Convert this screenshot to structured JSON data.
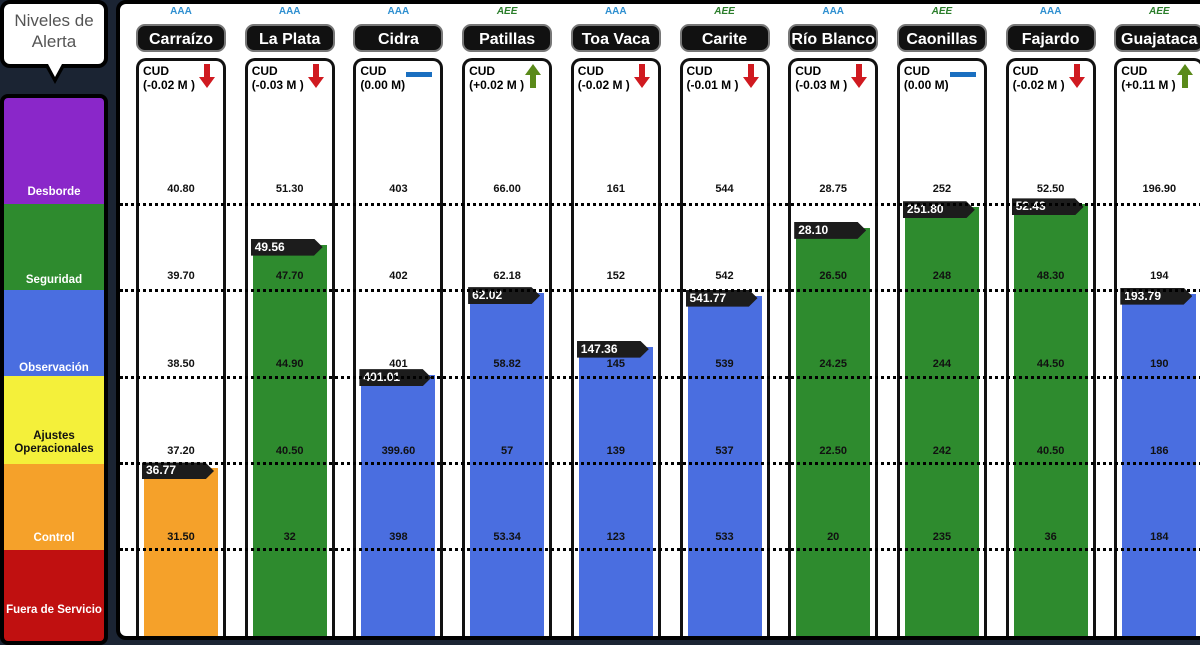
{
  "legend": {
    "title": "Niveles de Alerta",
    "bands": [
      {
        "label": "Desborde",
        "color": "#8a27c9"
      },
      {
        "label": "Seguridad",
        "color": "#2e8b2e"
      },
      {
        "label": "Observación",
        "color": "#4a6ee0"
      },
      {
        "label": "Ajustes Operacionales",
        "color": "#f4f03a"
      },
      {
        "label": "Control",
        "color": "#f5a12a"
      },
      {
        "label": "Fuera de Servicio",
        "color": "#c01010"
      }
    ]
  },
  "colors": {
    "green": "#2e8b2e",
    "blue": "#4a6ee0",
    "orange": "#f5a12a",
    "arrow_down": "#d01a20",
    "arrow_up": "#5a8a1a",
    "dash": "#1a6fc0"
  },
  "chart_data": {
    "type": "bar",
    "title": "",
    "levels": [
      "Desborde",
      "Seguridad",
      "Observación",
      "Ajustes Operacionales",
      "Control"
    ],
    "categories": [
      "Carraízo",
      "La Plata",
      "Cidra",
      "Patillas",
      "Toa Vaca",
      "Carite",
      "Río Blanco",
      "Caonillas",
      "Fajardo",
      "Guajataca"
    ],
    "reservoirs": [
      {
        "name": "Carraízo",
        "operator": "AAA",
        "cud": "CUD",
        "change": "(-0.02 M )",
        "trend": "down",
        "level": "36.77",
        "level_value": 36.77,
        "zone": "orange",
        "thresholds": [
          "40.80",
          "39.70",
          "38.50",
          "37.20",
          "31.50"
        ]
      },
      {
        "name": "La Plata",
        "operator": "AAA",
        "cud": "CUD",
        "change": "(-0.03 M )",
        "trend": "down",
        "level": "49.56",
        "level_value": 49.56,
        "zone": "green",
        "thresholds": [
          "51.30",
          "47.70",
          "44.90",
          "40.50",
          "32"
        ]
      },
      {
        "name": "Cidra",
        "operator": "AAA",
        "cud": "CUD",
        "change": "(0.00 M)",
        "trend": "flat",
        "level": "401.01",
        "level_value": 401.01,
        "zone": "blue",
        "thresholds": [
          "403",
          "402",
          "401",
          "399.60",
          "398"
        ]
      },
      {
        "name": "Patillas",
        "operator": "AEE",
        "cud": "CUD",
        "change": "(+0.02 M )",
        "trend": "up",
        "level": "62.02",
        "level_value": 62.02,
        "zone": "blue",
        "thresholds": [
          "66.00",
          "62.18",
          "58.82",
          "57",
          "53.34"
        ]
      },
      {
        "name": "Toa Vaca",
        "operator": "AAA",
        "cud": "CUD",
        "change": "(-0.02 M )",
        "trend": "down",
        "level": "147.36",
        "level_value": 147.36,
        "zone": "blue",
        "thresholds": [
          "161",
          "152",
          "145",
          "139",
          "123"
        ]
      },
      {
        "name": "Carite",
        "operator": "AEE",
        "cud": "CUD",
        "change": "(-0.01 M )",
        "trend": "down",
        "level": "541.77",
        "level_value": 541.77,
        "zone": "blue",
        "thresholds": [
          "544",
          "542",
          "539",
          "537",
          "533"
        ]
      },
      {
        "name": "Río Blanco",
        "operator": "AAA",
        "cud": "CUD",
        "change": "(-0.03 M )",
        "trend": "down",
        "level": "28.10",
        "level_value": 28.1,
        "zone": "green",
        "thresholds": [
          "28.75",
          "26.50",
          "24.25",
          "22.50",
          "20"
        ]
      },
      {
        "name": "Caonillas",
        "operator": "AEE",
        "cud": "CUD",
        "change": "(0.00 M)",
        "trend": "flat",
        "level": "251.80",
        "level_value": 251.8,
        "zone": "green",
        "thresholds": [
          "252",
          "248",
          "244",
          "242",
          "235"
        ]
      },
      {
        "name": "Fajardo",
        "operator": "AAA",
        "cud": "CUD",
        "change": "(-0.02 M )",
        "trend": "down",
        "level": "52.43",
        "level_value": 52.43,
        "zone": "green",
        "thresholds": [
          "52.50",
          "48.30",
          "44.50",
          "40.50",
          "36"
        ]
      },
      {
        "name": "Guajataca",
        "operator": "AEE",
        "cud": "CUD",
        "change": "(+0.11 M )",
        "trend": "up",
        "level": "193.79",
        "level_value": 193.79,
        "zone": "blue",
        "thresholds": [
          "196.90",
          "194",
          "190",
          "186",
          "184"
        ]
      }
    ]
  }
}
